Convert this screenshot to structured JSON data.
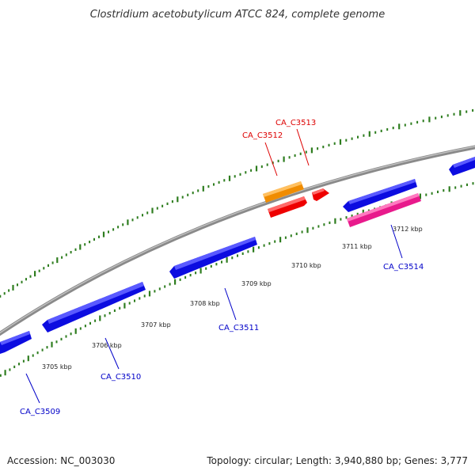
{
  "title": "Clostridium acetobutylicum ATCC 824, complete genome",
  "footer": {
    "accession": "Accession: NC_003030",
    "summary": "Topology: circular; Length: 3,940,880 bp; Genes: 3,777"
  },
  "kbp_labels": [
    "3705 kbp",
    "3706 kbp",
    "3707 kbp",
    "3708 kbp",
    "3709 kbp",
    "3710 kbp",
    "3711 kbp",
    "3712 kbp"
  ],
  "gene_labels": [
    "CA_C3509",
    "CA_C3510",
    "CA_C3511",
    "CA_C3512",
    "CA_C3513",
    "CA_C3514"
  ],
  "colors": {
    "backbone": "#808080",
    "tick": "#2e7d1f",
    "forward_gene": "#1010e6",
    "highlight_orange": "#f08c00",
    "highlight_red": "#ee0000",
    "highlight_pink": "#e81a8c",
    "label_blue": "#0000c8",
    "label_red": "#dd0000"
  }
}
